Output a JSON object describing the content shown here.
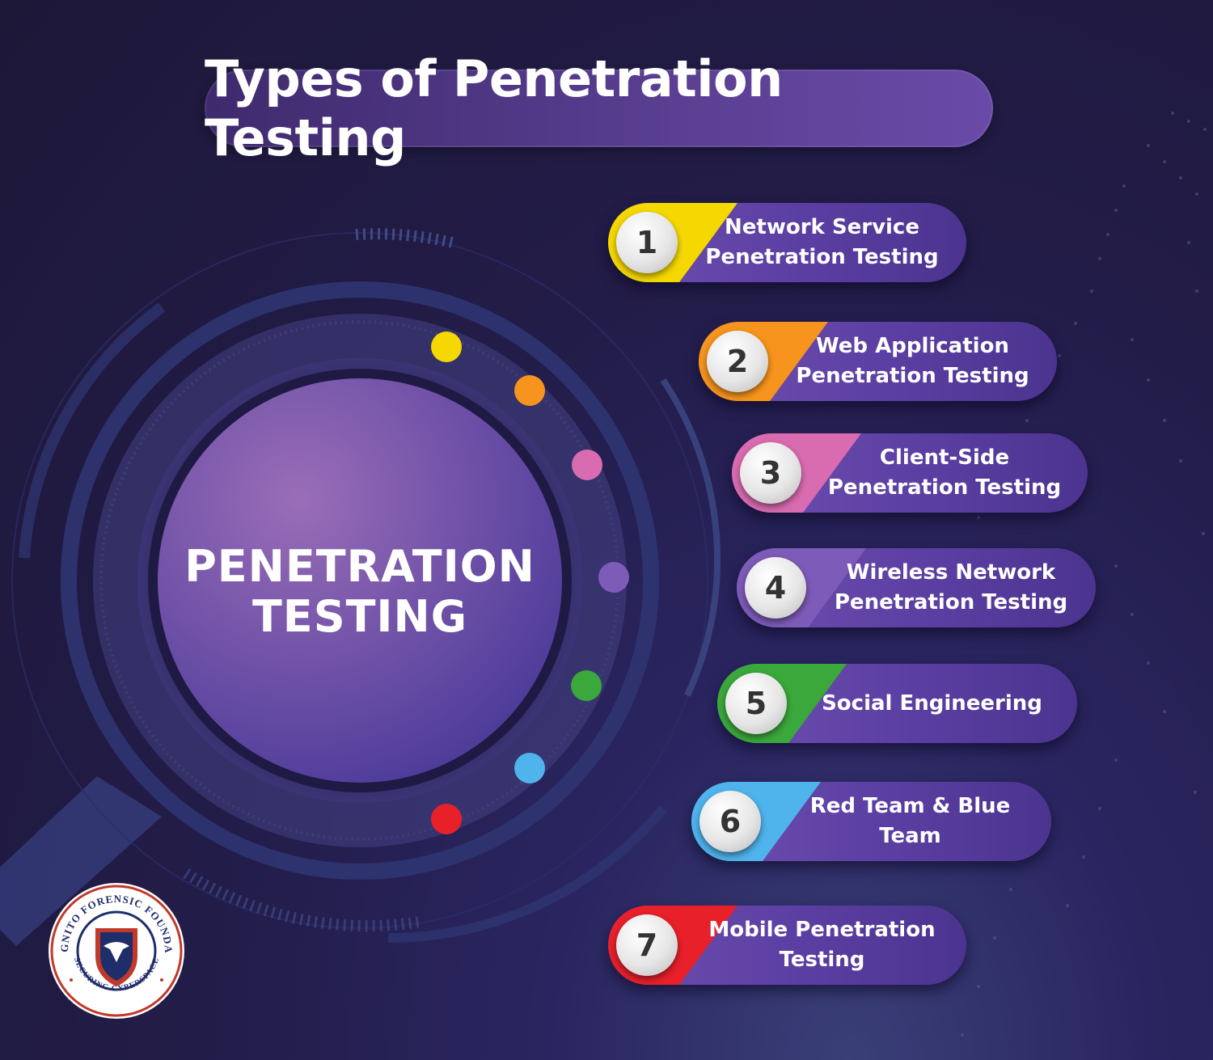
{
  "title": "Types of Penetration Testing",
  "center": {
    "line1": "PENETRATION",
    "line2": "TESTING"
  },
  "items": [
    {
      "number": "1",
      "line1": "Network Service",
      "line2": "Penetration Testing",
      "color": "#f5d800"
    },
    {
      "number": "2",
      "line1": "Web Application",
      "line2": "Penetration Testing",
      "color": "#f7941d"
    },
    {
      "number": "3",
      "line1": "Client-Side",
      "line2": "Penetration Testing",
      "color": "#d96bb0"
    },
    {
      "number": "4",
      "line1": "Wireless Network",
      "line2": "Penetration Testing",
      "color": "#7d5bb8"
    },
    {
      "number": "5",
      "line1": "Social Engineering",
      "line2": "",
      "color": "#3aa83a"
    },
    {
      "number": "6",
      "line1": "Red Team & Blue Team",
      "line2": "",
      "color": "#4fb3ec"
    },
    {
      "number": "7",
      "line1": "Mobile Penetration",
      "line2": "Testing",
      "color": "#e8202a"
    }
  ],
  "logo": {
    "top_text": "INCOGNITO FORENSIC FOUNDATION",
    "bottom_text": "SECURING CYBERSPACE"
  }
}
